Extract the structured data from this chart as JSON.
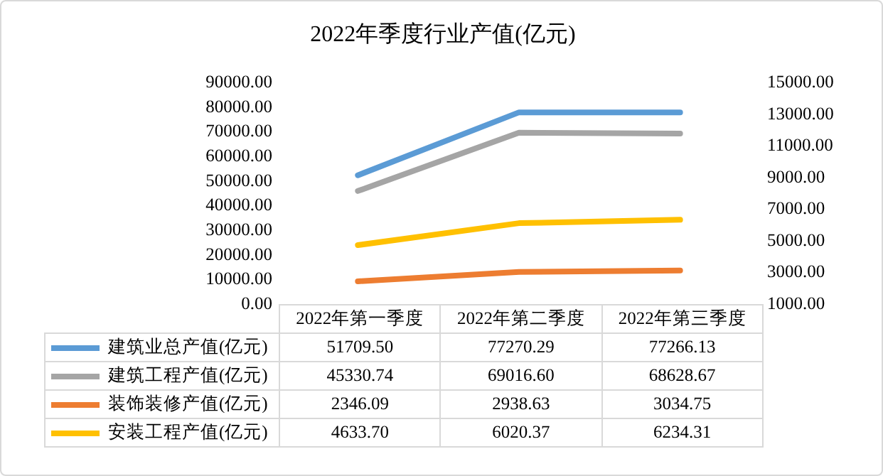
{
  "chart_data": {
    "type": "line",
    "title": "2022年季度行业产值(亿元)",
    "categories": [
      "2022年第一季度",
      "2022年第二季度",
      "2022年第三季度"
    ],
    "series": [
      {
        "name": "建筑业总产值(亿元)",
        "color": "#5b9bd5",
        "values": [
          51709.5,
          77270.29,
          77266.13
        ],
        "value_labels": [
          "51709.50",
          "77270.29",
          "77266.13"
        ]
      },
      {
        "name": "建筑工程产值(亿元)",
        "color": "#a5a5a5",
        "values": [
          45330.74,
          69016.6,
          68628.67
        ],
        "value_labels": [
          "45330.74",
          "69016.60",
          "68628.67"
        ]
      },
      {
        "name": "装饰装修产值(亿元)",
        "color": "#ed7d31",
        "values": [
          2346.09,
          2938.63,
          3034.75
        ],
        "axis": "y2",
        "value_labels": [
          "2346.09",
          "2938.63",
          "3034.75"
        ]
      },
      {
        "name": "安装工程产值(亿元)",
        "color": "#ffc000",
        "values": [
          4633.7,
          6020.37,
          6234.31
        ],
        "axis": "y2",
        "value_labels": [
          "4633.70",
          "6020.37",
          "6234.31"
        ]
      }
    ],
    "ylim": [
      0,
      90000
    ],
    "yticks": [
      {
        "value": 0,
        "label": "0.00"
      },
      {
        "value": 10000,
        "label": "10000.00"
      },
      {
        "value": 20000,
        "label": "20000.00"
      },
      {
        "value": 30000,
        "label": "30000.00"
      },
      {
        "value": 40000,
        "label": "40000.00"
      },
      {
        "value": 50000,
        "label": "50000.00"
      },
      {
        "value": 60000,
        "label": "60000.00"
      },
      {
        "value": 70000,
        "label": "70000.00"
      },
      {
        "value": 80000,
        "label": "80000.00"
      },
      {
        "value": 90000,
        "label": "90000.00"
      }
    ],
    "y2lim": [
      1000,
      15000
    ],
    "y2ticks": [
      {
        "value": 1000,
        "label": "1000.00"
      },
      {
        "value": 3000,
        "label": "3000.00"
      },
      {
        "value": 5000,
        "label": "5000.00"
      },
      {
        "value": 7000,
        "label": "7000.00"
      },
      {
        "value": 9000,
        "label": "9000.00"
      },
      {
        "value": 11000,
        "label": "11000.00"
      },
      {
        "value": 13000,
        "label": "13000.00"
      },
      {
        "value": 15000,
        "label": "15000.00"
      }
    ],
    "legend": "bottom",
    "grid": false,
    "marker": "none",
    "line_style": "solid"
  }
}
